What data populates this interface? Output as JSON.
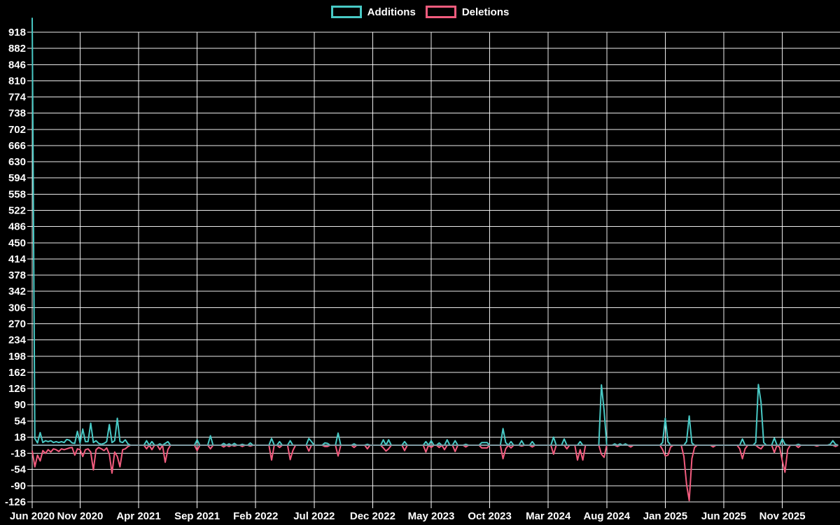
{
  "chart_data": {
    "type": "line",
    "title": "",
    "legend_position": "top-center",
    "background_color": "#000000",
    "grid": true,
    "grid_color": "#ffffff",
    "zero_line_color": "#7E99A1",
    "text_color": "#ffffff",
    "x_unit": "weekly data points starting Jun 2020",
    "weeks_total": 304,
    "ylim": [
      -126,
      950
    ],
    "y_ticks": [
      918,
      882,
      846,
      810,
      774,
      738,
      702,
      666,
      630,
      594,
      558,
      522,
      486,
      450,
      414,
      378,
      342,
      306,
      270,
      234,
      198,
      162,
      126,
      90,
      54,
      18,
      -18,
      -54,
      -90,
      -126
    ],
    "x_ticks": [
      {
        "label": "Jun 2020",
        "week": 0
      },
      {
        "label": "Nov 2020",
        "week": 18
      },
      {
        "label": "Apr 2021",
        "week": 40
      },
      {
        "label": "Sep 2021",
        "week": 62
      },
      {
        "label": "Feb 2022",
        "week": 84
      },
      {
        "label": "Jul 2022",
        "week": 106
      },
      {
        "label": "Dec 2022",
        "week": 128
      },
      {
        "label": "May 2023",
        "week": 150
      },
      {
        "label": "Oct 2023",
        "week": 172
      },
      {
        "label": "Mar 2024",
        "week": 194
      },
      {
        "label": "Aug 2024",
        "week": 216
      },
      {
        "label": "Jan 2025",
        "week": 238
      },
      {
        "label": "Jun 2025",
        "week": 260
      },
      {
        "label": "Nov 2025",
        "week": 282
      }
    ],
    "series": [
      {
        "name": "Additions",
        "color": "#48C9C5",
        "default_value": 0,
        "sparse": {
          "0": 950,
          "1": 15,
          "2": 5,
          "3": 28,
          "4": 6,
          "5": 10,
          "6": 8,
          "7": 10,
          "8": 6,
          "9": 8,
          "10": 6,
          "11": 8,
          "12": 6,
          "13": 13,
          "14": 11,
          "15": 5,
          "16": 4,
          "17": 31,
          "18": 5,
          "19": 36,
          "20": 8,
          "21": 8,
          "22": 49,
          "23": 6,
          "24": 10,
          "25": 4,
          "26": 2,
          "27": 4,
          "28": 8,
          "29": 46,
          "30": 6,
          "31": 10,
          "32": 60,
          "33": 8,
          "34": 6,
          "35": 12,
          "36": 3,
          "43": 10,
          "45": 8,
          "48": 3,
          "50": 4,
          "51": 8,
          "62": 12,
          "67": 21,
          "72": 4,
          "74": 3,
          "76": 4,
          "79": 2,
          "82": 5,
          "90": 15,
          "93": 8,
          "97": 10,
          "104": 15,
          "105": 8,
          "110": 5,
          "111": 4,
          "115": 27,
          "121": 3,
          "126": 2,
          "132": 12,
          "134": 12,
          "140": 8,
          "148": 8,
          "150": 10,
          "153": 5,
          "156": 12,
          "159": 10,
          "163": 2,
          "169": 6,
          "170": 6,
          "171": 6,
          "177": 37,
          "178": 6,
          "180": 8,
          "184": 10,
          "188": 8,
          "196": 18,
          "200": 14,
          "206": 8,
          "214": 134,
          "215": 77,
          "219": 3,
          "221": 3,
          "223": 3,
          "237": 6,
          "238": 60,
          "239": 8,
          "246": 8,
          "247": 65,
          "248": 5,
          "267": 14,
          "272": 6,
          "273": 135,
          "274": 95,
          "275": 6,
          "279": 16,
          "282": 14,
          "283": 2,
          "288": 2,
          "300": 2,
          "301": 10,
          "302": 2
        }
      },
      {
        "name": "Deletions",
        "color": "#F25C7E",
        "default_value": 0,
        "sparse": {
          "0": -12,
          "1": -48,
          "2": -22,
          "3": -35,
          "4": -12,
          "5": -18,
          "6": -10,
          "7": -15,
          "8": -8,
          "9": -10,
          "10": -14,
          "11": -8,
          "12": -10,
          "13": -8,
          "14": -6,
          "15": -5,
          "16": -22,
          "17": -8,
          "18": -10,
          "19": -25,
          "20": -10,
          "21": -8,
          "22": -15,
          "23": -55,
          "24": -10,
          "25": -5,
          "26": -8,
          "27": -12,
          "28": -6,
          "29": -20,
          "30": -62,
          "31": -15,
          "32": -25,
          "33": -48,
          "34": -10,
          "35": -8,
          "36": -3,
          "43": -8,
          "45": -10,
          "48": -10,
          "50": -38,
          "51": -10,
          "62": -12,
          "67": -8,
          "72": -4,
          "74": -3,
          "76": -2,
          "79": -3,
          "82": -2,
          "90": -33,
          "93": -5,
          "97": -32,
          "98": -12,
          "104": -13,
          "110": -3,
          "111": -3,
          "115": -24,
          "121": -5,
          "126": -8,
          "132": -6,
          "133": -13,
          "134": -8,
          "140": -12,
          "148": -15,
          "150": -5,
          "153": -5,
          "155": -10,
          "159": -14,
          "163": -4,
          "169": -6,
          "170": -6,
          "171": -6,
          "177": -30,
          "178": -8,
          "180": -6,
          "184": -2,
          "188": -4,
          "196": -20,
          "201": -8,
          "205": -33,
          "206": -10,
          "207": -33,
          "214": -20,
          "215": -27,
          "220": -3,
          "225": -4,
          "237": -10,
          "238": -24,
          "239": -22,
          "240": -4,
          "245": -25,
          "246": -87,
          "247": -123,
          "248": -30,
          "249": -5,
          "256": -4,
          "266": -8,
          "267": -30,
          "268": -8,
          "273": -5,
          "274": -8,
          "279": -16,
          "281": -5,
          "282": -35,
          "283": -60,
          "284": -10,
          "288": -5,
          "295": -2,
          "302": -3
        }
      }
    ]
  }
}
